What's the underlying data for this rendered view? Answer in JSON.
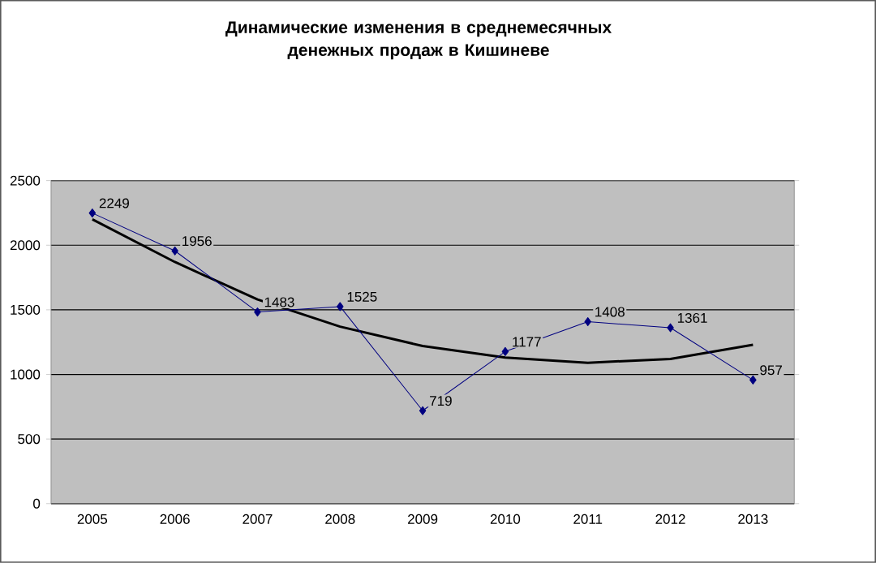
{
  "chart_data": {
    "type": "line",
    "title": "Динамические изменения в среднемесячных денежных продаж в Кишиневе",
    "categories": [
      "2005",
      "2006",
      "2007",
      "2008",
      "2009",
      "2010",
      "2011",
      "2012",
      "2013"
    ],
    "series": [
      {
        "color": "#000080",
        "marker": "diamond",
        "values": [
          2249,
          1956,
          1483,
          1525,
          719,
          1177,
          1408,
          1361,
          957
        ],
        "value_labels": [
          "2249",
          "1956",
          "1483",
          "1525",
          "719",
          "1177",
          "1408",
          "1361",
          "957"
        ]
      },
      {
        "color": "#000000",
        "marker": "none",
        "values": [
          2200,
          1870,
          1580,
          1370,
          1220,
          1130,
          1090,
          1120,
          1230
        ]
      }
    ],
    "ylim": [
      0,
      2500
    ],
    "yticks": [
      0,
      500,
      1000,
      1500,
      2000,
      2500
    ],
    "grid": "y"
  }
}
